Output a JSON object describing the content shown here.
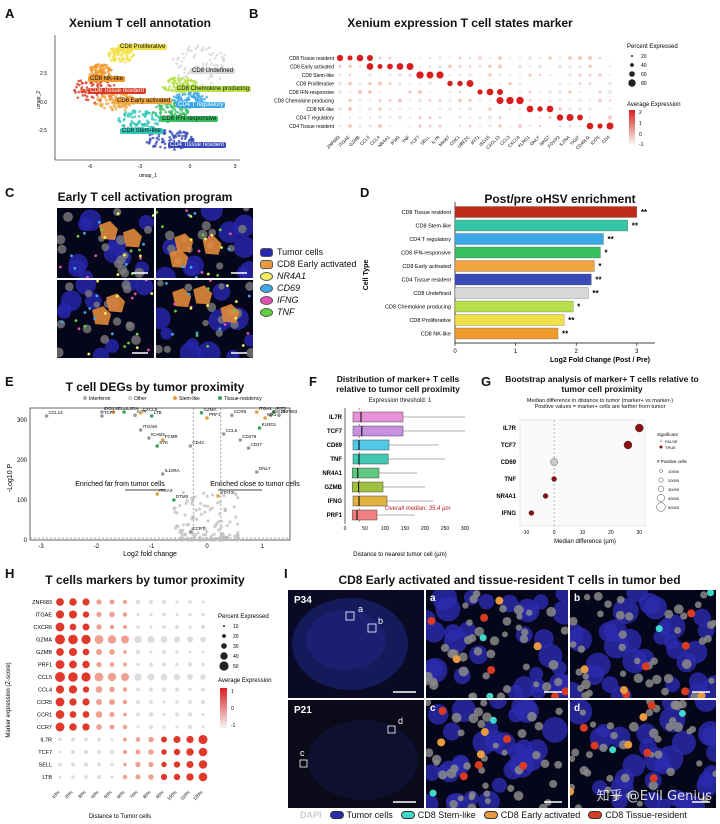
{
  "panels": {
    "A": {
      "label": "A",
      "title": "Xenium T cell annotation",
      "xaxis": "umap_1",
      "yaxis": "umap_2",
      "clusters": [
        {
          "name": "CD8 Proliferative",
          "color": "#f2e04a"
        },
        {
          "name": "CD8 NK-like",
          "color": "#f09a2c"
        },
        {
          "name": "CD8 Tissue resident",
          "color": "#d83a22"
        },
        {
          "name": "CD8 Early activated",
          "color": "#f0a640"
        },
        {
          "name": "CD8 Undefined",
          "color": "#d8d8d8"
        },
        {
          "name": "CD8 Chemokine producing",
          "color": "#b8e04a"
        },
        {
          "name": "CD4 T regulatory",
          "color": "#3aa8e8"
        },
        {
          "name": "CD8 IFN-responsive",
          "color": "#36c060"
        },
        {
          "name": "CD8 Stem-like",
          "color": "#32c8b8"
        },
        {
          "name": "CD4 Tissue resident",
          "color": "#3a4ab8"
        }
      ],
      "ticks_x": [
        "-6",
        "-3",
        "0",
        "3"
      ],
      "ticks_y": [
        "2.5",
        "0.0",
        "-2.5"
      ]
    },
    "B": {
      "label": "B",
      "title": "Xenium expression T cell states marker",
      "rows": [
        "CD8 Tissue resident",
        "CD8 Early activated",
        "CD8 Stem-like",
        "CD8 Proliferative",
        "CD8 IFN-responsive",
        "CD8 Chemokine producing",
        "CD8 NK-like",
        "CD4 T regulatory",
        "CD4 Tissue resident"
      ],
      "genes": [
        "ZNF683",
        "ITGAE",
        "GZMB",
        "CCL5",
        "CCL4",
        "NR4A1",
        "IFNG",
        "TNF",
        "TCF7",
        "SELL",
        "IL7R",
        "MKI67",
        "CDK1",
        "UBE2C",
        "IFIT1",
        "ISG15",
        "CXCL13",
        "CCL3",
        "CXCL8",
        "KLRD1",
        "GNLY",
        "NKG7",
        "FOXP3",
        "IL2RA",
        "TIGIT",
        "CD40LG",
        "ICOS",
        "CD4"
      ],
      "legend_pct_title": "Percent Expressed",
      "legend_pct": [
        "20",
        "40",
        "60",
        "80"
      ],
      "legend_expr_title": "Average Expression",
      "legend_expr": [
        "2",
        "1",
        "0",
        "-1"
      ]
    },
    "C": {
      "label": "C",
      "title": "Early T cell activation program",
      "legend": [
        {
          "name": "Tumor cells",
          "color": "#2a2ab0",
          "italic": false
        },
        {
          "name": "CD8 Early activated",
          "color": "#e89a40",
          "italic": false
        },
        {
          "name": "NR4A1",
          "color": "#f2f060",
          "italic": true
        },
        {
          "name": "CD69",
          "color": "#40a8e8",
          "italic": true
        },
        {
          "name": "IFNG",
          "color": "#e050b0",
          "italic": true
        },
        {
          "name": "TNF",
          "color": "#60d040",
          "italic": true
        }
      ]
    },
    "D": {
      "label": "D",
      "title": "Post/pre oHSV enrichment",
      "ylabel": "Cell Type",
      "xlabel": "Log2 Fold Change (Post / Pre)",
      "ticks": [
        "0",
        "1",
        "2",
        "3"
      ]
    },
    "E": {
      "label": "E",
      "title": "T cell DEGs by tumor proximity",
      "xlabel": "Log2 fold change",
      "ylabel": "-Log10 P",
      "legend": [
        "Interferon",
        "Other",
        "Stem-like",
        "Tissue-residency"
      ],
      "left_note": "Enriched far from tumor cells",
      "right_note": "Enriched close to tumor cells",
      "ticks_x": [
        "-3",
        "-2",
        "-1",
        "0",
        "1"
      ],
      "ticks_y": [
        "0",
        "100",
        "200",
        "300"
      ],
      "genes_top": [
        "CCL13",
        "IDO1",
        "SELL",
        "IL2RA",
        "TCF7",
        "IL7R",
        "CXCL9",
        "LTB",
        "ITGAM",
        "ICAM3",
        "FCMR",
        "SYK",
        "CD44",
        "IL10RA",
        "ITGAX",
        "DTM3",
        "CD27",
        "CCR7",
        "PRF1",
        "GZMA",
        "CCL5",
        "CCR5",
        "ITGA1",
        "IFIT3",
        "ISG15",
        "ZNF683",
        "MX1",
        "KLRD1",
        "CD276",
        "GNLY",
        "STAT2"
      ]
    },
    "F": {
      "label": "F",
      "title": "Distribution of marker+ T cells relative to tumor cell proximity",
      "subtitle": "Expression threshold: 1",
      "genes": [
        "IL7R",
        "TCF7",
        "CD69",
        "TNF",
        "NR4A1",
        "GZMB",
        "IFNG",
        "PRF1"
      ],
      "note": "Overall median: 35.4 µm",
      "xlabel": "Distance to nearest tumor cell (µm)",
      "ticks": [
        "0",
        "50",
        "100",
        "150",
        "200",
        "250",
        "300"
      ]
    },
    "G": {
      "label": "G",
      "title": "Bootstrap analysis of marker+ T cells relative to tumor cell proximity",
      "subtitle": "Median difference in distance to tumor (marker+ vs marker-)\nPositive values = marker+ cells are farther from tumor",
      "genes": [
        "IL7R",
        "TCF7",
        "CD69",
        "TNF",
        "NR4A1",
        "IFNG"
      ],
      "xlabel": "Median difference (µm)",
      "ticks": [
        "-10",
        "0",
        "10",
        "20",
        "30"
      ],
      "legend_sig_title": "Significant",
      "legend_sig": [
        "FALSE",
        "TRUE"
      ],
      "legend_n_title": "# Positive cells",
      "legend_n": [
        "10000",
        "20000",
        "30000",
        "40000",
        "50000"
      ]
    },
    "H": {
      "label": "H",
      "title": "T cells markers by tumor proximity",
      "genes": [
        "ZNF683",
        "ITGAE",
        "CXCR6",
        "GZMA",
        "GZMB",
        "PRF1",
        "CCL5",
        "CCL4",
        "CCR5",
        "CCR1",
        "CCR7",
        "IL7R",
        "TCF7",
        "SELL",
        "LTB"
      ],
      "bins": [
        "10%",
        "20%",
        "30%",
        "40%",
        "50%",
        "60%",
        "70%",
        "80%",
        "90%",
        "100%",
        "110%",
        "120%"
      ],
      "xlabel": "Distance to Tumor cells",
      "ylabel": "Marker expression (Z-score)",
      "legend_pct_title": "Percent Expressed",
      "legend_pct": [
        "10",
        "20",
        "30",
        "40",
        "50"
      ],
      "legend_expr_title": "Average Expression",
      "legend_expr": [
        "1",
        "0",
        "-1"
      ]
    },
    "I": {
      "label": "I",
      "title": "CD8 Early activated and tissue-resident T cells in tumor bed",
      "samples": [
        "P34",
        "P21"
      ],
      "insets": [
        "a",
        "b",
        "c",
        "d"
      ],
      "legend_dapi": "DAPI",
      "legend": [
        {
          "name": "Tumor cells",
          "color": "#2a2ab0"
        },
        {
          "name": "CD8 Stem-like",
          "color": "#40d8c8"
        },
        {
          "name": "CD8 Early activated",
          "color": "#e89a40"
        },
        {
          "name": "CD8 Tissue-resident",
          "color": "#d83a22"
        }
      ],
      "watermark": "知乎 @Evil Genius"
    }
  },
  "chart_data": [
    {
      "type": "bar",
      "title": "Post/pre oHSV enrichment",
      "xlabel": "Log2 Fold Change (Post / Pre)",
      "ylabel": "Cell Type",
      "categories": [
        "CD8 Tissue resident",
        "CD8 Stem-like",
        "CD4 T regulatory",
        "CD8 IFN-responsive",
        "CD8 Early activated",
        "CD4 Tissue resident",
        "CD8 Undefined",
        "CD8 Chemokine producing",
        "CD8 Proliferative",
        "CD8 NK-like"
      ],
      "values": [
        3.0,
        2.85,
        2.45,
        2.4,
        2.3,
        2.25,
        2.2,
        1.95,
        1.8,
        1.7
      ],
      "significance": [
        "**",
        "**",
        "**",
        "*",
        "*",
        "**",
        "**",
        "*",
        "**",
        "**"
      ],
      "colors": [
        "#c02a18",
        "#36c6a6",
        "#3aa8e8",
        "#36c060",
        "#f0a640",
        "#3a4ab8",
        "#d8d8d8",
        "#b8e04a",
        "#f2e04a",
        "#f09a2c"
      ],
      "xlim": [
        0,
        3.3
      ]
    },
    {
      "type": "box",
      "title": "Distribution of marker+ T cells relative to tumor cell proximity",
      "categories": [
        "IL7R",
        "TCF7",
        "CD69",
        "TNF",
        "NR4A1",
        "GZMB",
        "IFNG",
        "PRF1"
      ],
      "q1": [
        20,
        20,
        20,
        20,
        18,
        18,
        20,
        18
      ],
      "median": [
        40,
        42,
        35,
        35,
        32,
        34,
        35,
        30
      ],
      "q3": [
        145,
        145,
        110,
        108,
        85,
        95,
        105,
        80
      ],
      "whisker_hi": [
        300,
        300,
        235,
        250,
        180,
        200,
        220,
        175
      ],
      "colors": [
        "#e890d8",
        "#c890e0",
        "#50c8e8",
        "#40c8b0",
        "#60c880",
        "#a0c040",
        "#e0b040",
        "#f08080"
      ],
      "xlim": [
        0,
        300
      ]
    },
    {
      "type": "scatter",
      "title": "Bootstrap analysis of marker+ T cells relative to tumor cell proximity",
      "categories": [
        "IL7R",
        "TCF7",
        "CD69",
        "TNF",
        "NR4A1",
        "IFNG"
      ],
      "values": [
        30,
        26,
        0,
        0,
        -3,
        -8
      ],
      "significant": [
        true,
        true,
        false,
        true,
        true,
        true
      ],
      "xlim": [
        -12,
        32
      ]
    }
  ]
}
